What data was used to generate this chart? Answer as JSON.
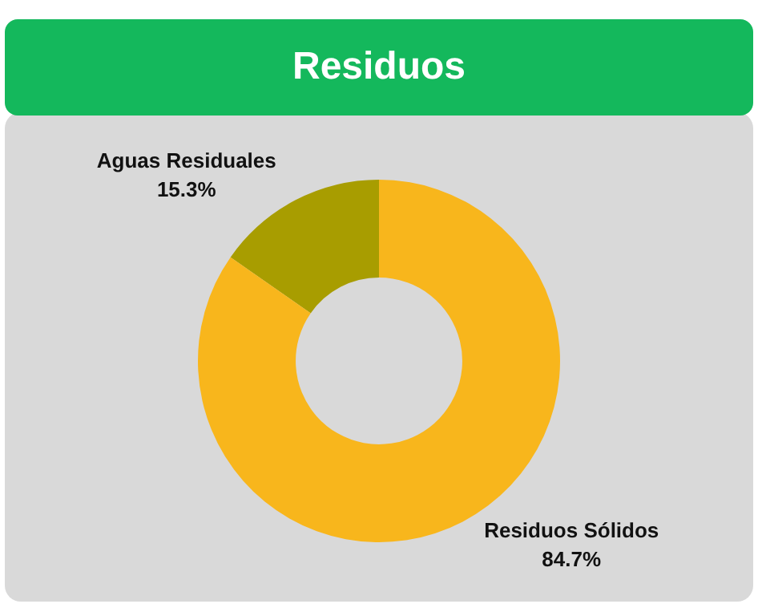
{
  "chart_data": {
    "type": "donut",
    "title": "Residuos",
    "categories": [
      "Aguas Residuales",
      "Residuos Sólidos"
    ],
    "values": [
      15.3,
      84.7
    ],
    "colors": [
      "#a89d00",
      "#f8b61c"
    ],
    "value_labels": [
      "15.3%",
      "84.7%"
    ],
    "legend": false
  }
}
